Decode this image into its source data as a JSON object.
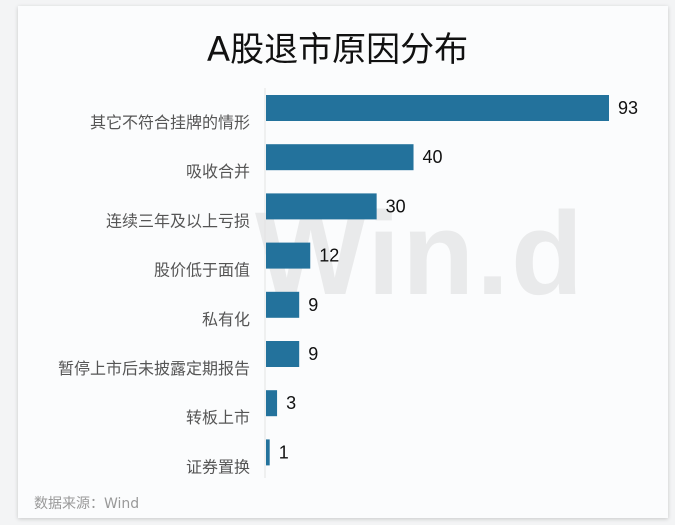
{
  "chart_data": {
    "type": "bar",
    "orientation": "horizontal",
    "title": "A股退市原因分布",
    "categories": [
      "其它不符合挂牌的情形",
      "吸收合并",
      "连续三年及以上亏损",
      "股价低于面值",
      "私有化",
      "暂停上市后未披露定期报告",
      "转板上市",
      "证券置换"
    ],
    "values": [
      93,
      40,
      30,
      12,
      9,
      9,
      3,
      1
    ],
    "xlim": [
      0,
      93
    ],
    "grid": false,
    "legend": "none",
    "bar_color": "#23729c",
    "source": "数据来源：Wind",
    "watermark": "Wind"
  }
}
